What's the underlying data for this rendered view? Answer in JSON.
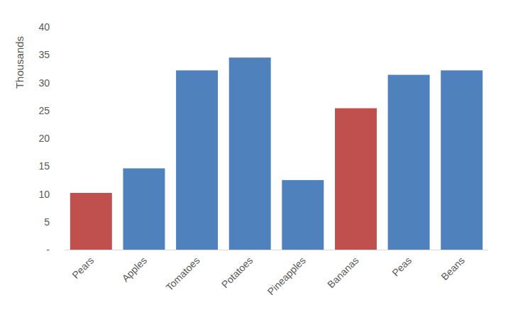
{
  "chart_data": {
    "type": "bar",
    "y_label": "Thousands",
    "categories": [
      "Pears",
      "Apples",
      "Tomatoes",
      "Potatoes",
      "Pineapples",
      "Bananas",
      "Peas",
      "Beans"
    ],
    "values": [
      10.2,
      14.6,
      32.2,
      34.5,
      12.5,
      25.4,
      31.4,
      32.2
    ],
    "colors": [
      "#c0504d",
      "#4f81bd",
      "#4f81bd",
      "#4f81bd",
      "#4f81bd",
      "#c0504d",
      "#4f81bd",
      "#4f81bd"
    ],
    "ylim": [
      0,
      40
    ],
    "yticks": [
      {
        "value": 0,
        "label": "-"
      },
      5,
      10,
      15,
      20,
      25,
      30,
      35,
      40
    ],
    "grid": false
  }
}
